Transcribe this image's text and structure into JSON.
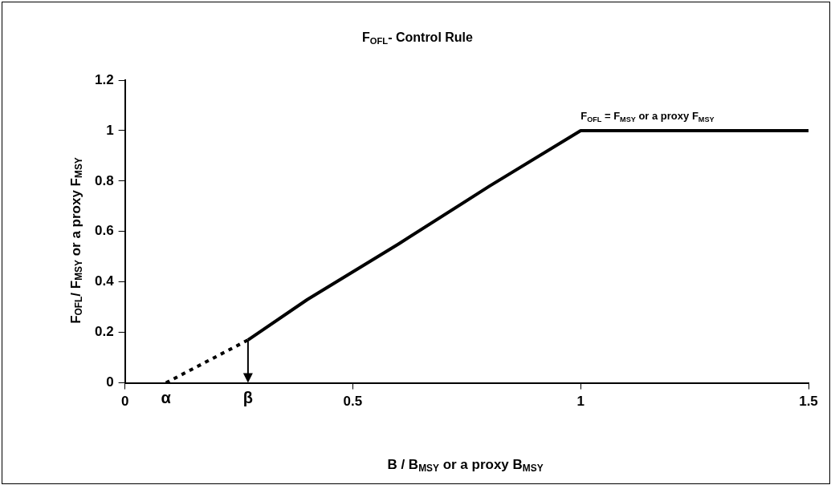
{
  "chart_data": {
    "type": "line",
    "title": "F$_{OFL}$- Control Rule",
    "xlabel": "B / B$_{MSY}$ or a proxy B$_{MSY}$",
    "ylabel": "F$_{OFL}$/ F$_{MSY}$ or a proxy F$_{MSY}$",
    "series": [
      {
        "color": "#000000",
        "line_style": "dotted",
        "x": [
          0.09,
          0.27
        ],
        "values": [
          0,
          0.17
        ]
      },
      {
        "color": "#000000",
        "line_style": "solid",
        "x": [
          0.27,
          0.4,
          0.6,
          0.8,
          1,
          1.5
        ],
        "values": [
          0.17,
          0.33,
          0.55,
          0.78,
          1,
          1
        ]
      }
    ],
    "xlim": [
      0,
      1.5
    ],
    "xticks": [
      0,
      0.5,
      1,
      1.5
    ],
    "ylim": [
      0,
      1.2
    ],
    "yticks": [
      0,
      0.2,
      0.4,
      0.6,
      0.8,
      1,
      1.2
    ],
    "grid": false,
    "legend": false,
    "marker": "none",
    "annotations": [
      "F$_{OFL}$ = F$_{MSY}$ or a proxy F$_{MSY}$",
      "α",
      "β"
    ]
  }
}
